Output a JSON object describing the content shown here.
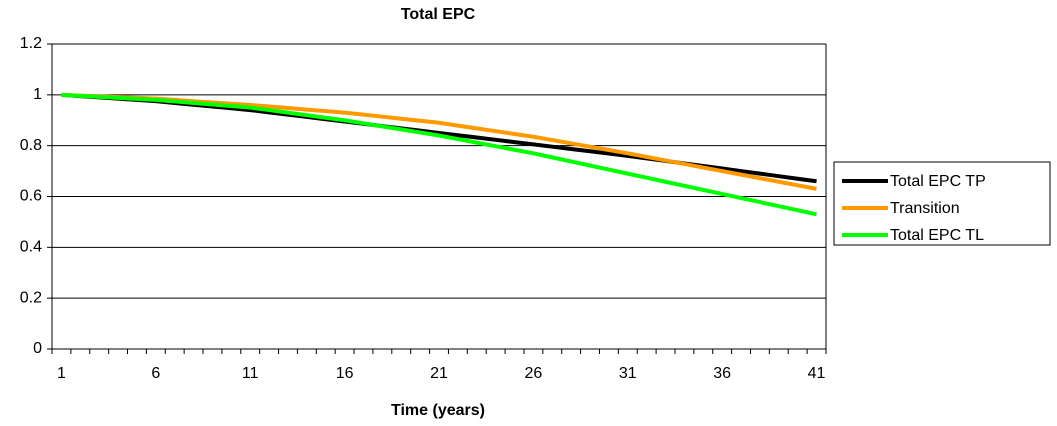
{
  "chart_data": {
    "type": "line",
    "title": "Total EPC",
    "x_label": "Time (years)",
    "categories": [
      1,
      null,
      null,
      null,
      null,
      6,
      null,
      null,
      null,
      null,
      11,
      null,
      null,
      null,
      null,
      16,
      null,
      null,
      null,
      null,
      21,
      null,
      null,
      null,
      null,
      26,
      null,
      null,
      null,
      null,
      31,
      null,
      null,
      null,
      null,
      36,
      null,
      null,
      null,
      null,
      41
    ],
    "ylim": [
      0,
      1.2
    ],
    "yticks": [
      0,
      0.2,
      0.4,
      0.6,
      0.8,
      1,
      1.2
    ],
    "grid": true,
    "legend": "right",
    "series": [
      {
        "name": "Total EPC TP",
        "color": "#000000",
        "values": [
          1.0,
          0.995,
          0.99,
          0.985,
          0.98,
          0.975,
          0.968,
          0.961,
          0.954,
          0.947,
          0.94,
          0.931,
          0.922,
          0.913,
          0.904,
          0.895,
          0.886,
          0.877,
          0.868,
          0.859,
          0.85,
          0.841,
          0.832,
          0.823,
          0.814,
          0.805,
          0.796,
          0.787,
          0.778,
          0.769,
          0.76,
          0.75,
          0.74,
          0.73,
          0.72,
          0.71,
          0.7,
          0.69,
          0.68,
          0.67,
          0.66
        ]
      },
      {
        "name": "Transition",
        "color": "#ff9900",
        "values": [
          1.0,
          0.997,
          0.994,
          0.991,
          0.988,
          0.985,
          0.98,
          0.975,
          0.97,
          0.965,
          0.96,
          0.954,
          0.948,
          0.942,
          0.936,
          0.93,
          0.922,
          0.914,
          0.906,
          0.898,
          0.89,
          0.879,
          0.868,
          0.857,
          0.846,
          0.835,
          0.822,
          0.809,
          0.796,
          0.783,
          0.77,
          0.756,
          0.742,
          0.728,
          0.714,
          0.7,
          0.686,
          0.672,
          0.658,
          0.644,
          0.63
        ]
      },
      {
        "name": "Total EPC TL",
        "color": "#00ff00",
        "values": [
          1.0,
          0.996,
          0.992,
          0.988,
          0.984,
          0.98,
          0.974,
          0.968,
          0.962,
          0.956,
          0.95,
          0.94,
          0.93,
          0.92,
          0.91,
          0.9,
          0.888,
          0.876,
          0.864,
          0.852,
          0.84,
          0.826,
          0.812,
          0.798,
          0.784,
          0.77,
          0.754,
          0.738,
          0.722,
          0.706,
          0.69,
          0.674,
          0.658,
          0.642,
          0.626,
          0.61,
          0.594,
          0.578,
          0.562,
          0.546,
          0.53
        ]
      }
    ]
  }
}
